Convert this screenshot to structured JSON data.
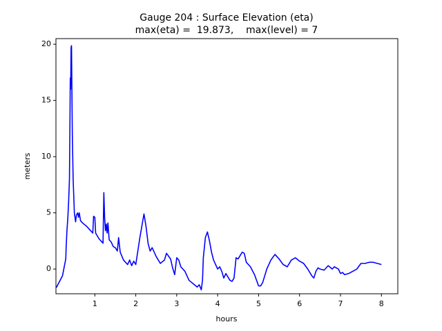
{
  "chart_data": {
    "type": "line",
    "title": "Gauge 204 : Surface Elevation (eta)",
    "subtitle": "max(eta) =  19.873,    max(level) = 7",
    "x_label": "hours",
    "y_label": "meters",
    "xlim": [
      0.05,
      8.4
    ],
    "ylim": [
      -2.2,
      20.5
    ],
    "xticks": [
      1,
      2,
      3,
      4,
      5,
      6,
      7,
      8
    ],
    "yticks": [
      0,
      5,
      10,
      15,
      20
    ],
    "grid": false,
    "series": [
      {
        "name": "eta",
        "color": "#0000ff",
        "x": [
          0.06,
          0.21,
          0.29,
          0.3,
          0.32,
          0.34,
          0.36,
          0.38,
          0.39,
          0.4,
          0.41,
          0.42,
          0.43,
          0.44,
          0.45,
          0.47,
          0.5,
          0.53,
          0.55,
          0.58,
          0.6,
          0.62,
          0.65,
          0.7,
          0.8,
          0.9,
          0.95,
          0.97,
          1.0,
          1.02,
          1.1,
          1.2,
          1.22,
          1.24,
          1.26,
          1.28,
          1.3,
          1.32,
          1.35,
          1.4,
          1.45,
          1.5,
          1.55,
          1.58,
          1.62,
          1.7,
          1.8,
          1.85,
          1.9,
          1.95,
          2.0,
          2.1,
          2.2,
          2.25,
          2.3,
          2.35,
          2.4,
          2.5,
          2.6,
          2.7,
          2.75,
          2.85,
          2.9,
          2.95,
          3.0,
          3.05,
          3.1,
          3.2,
          3.3,
          3.4,
          3.5,
          3.55,
          3.6,
          3.63,
          3.65,
          3.7,
          3.75,
          3.8,
          3.85,
          3.9,
          4.0,
          4.05,
          4.1,
          4.15,
          4.2,
          4.3,
          4.35,
          4.4,
          4.45,
          4.5,
          4.6,
          4.65,
          4.7,
          4.8,
          4.9,
          5.0,
          5.05,
          5.1,
          5.2,
          5.3,
          5.4,
          5.5,
          5.6,
          5.7,
          5.8,
          5.9,
          6.0,
          6.1,
          6.2,
          6.3,
          6.35,
          6.4,
          6.45,
          6.5,
          6.6,
          6.7,
          6.8,
          6.85,
          6.95,
          7.0,
          7.05,
          7.1,
          7.2,
          7.3,
          7.4,
          7.5,
          7.6,
          7.7,
          7.8,
          7.9,
          8.0
        ],
        "values": [
          -1.65,
          -0.6,
          0.9,
          2.0,
          3.5,
          4.5,
          6,
          8,
          12,
          17,
          16,
          19.7,
          19.873,
          16,
          12,
          8,
          5,
          4.2,
          4.8,
          5.0,
          4.6,
          5.0,
          4.3,
          4.1,
          3.8,
          3.4,
          3.2,
          4.7,
          4.6,
          3.2,
          2.7,
          2.3,
          6.8,
          4.5,
          3.4,
          4.0,
          3.2,
          4.1,
          2.6,
          2.4,
          2.0,
          1.9,
          1.6,
          2.8,
          1.5,
          0.8,
          0.4,
          0.8,
          0.3,
          0.7,
          0.4,
          2.8,
          4.9,
          3.8,
          2.3,
          1.6,
          1.9,
          1.1,
          0.5,
          0.8,
          1.4,
          0.9,
          0.1,
          -0.5,
          1.0,
          0.8,
          0.2,
          -0.2,
          -1.0,
          -1.3,
          -1.6,
          -1.4,
          -1.85,
          -1.0,
          1.0,
          2.8,
          3.3,
          2.5,
          1.5,
          0.8,
          0.0,
          0.2,
          -0.2,
          -0.8,
          -0.4,
          -1.0,
          -1.1,
          -0.8,
          1.0,
          0.9,
          1.5,
          1.4,
          0.6,
          0.2,
          -0.5,
          -1.5,
          -1.5,
          -1.2,
          0.0,
          0.8,
          1.3,
          0.9,
          0.4,
          0.2,
          0.8,
          1.0,
          0.7,
          0.5,
          0.0,
          -0.6,
          -0.8,
          -0.2,
          0.1,
          0.0,
          -0.1,
          0.3,
          0.0,
          0.2,
          0.0,
          -0.4,
          -0.3,
          -0.5,
          -0.4,
          -0.2,
          0.0,
          0.5,
          0.5,
          0.6,
          0.6,
          0.5,
          0.4
        ]
      }
    ]
  }
}
